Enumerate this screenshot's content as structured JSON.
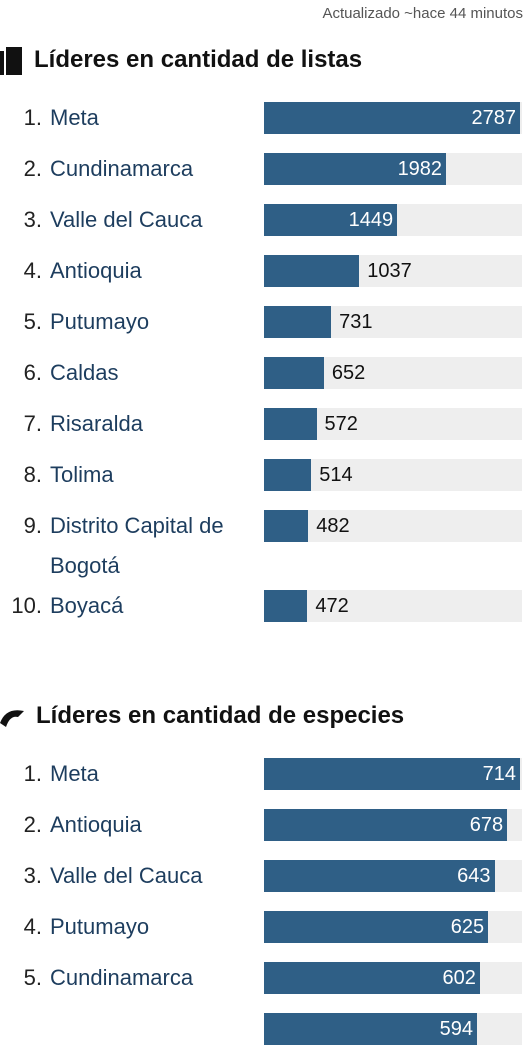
{
  "header": {
    "updated": "Actualizado ~hace 44 minutos"
  },
  "chart_data": [
    {
      "type": "bar",
      "orientation": "horizontal",
      "title": "Líderes en cantidad de listas",
      "ranks": [
        "1.",
        "2.",
        "3.",
        "4.",
        "5.",
        "6.",
        "7.",
        "8.",
        "9.",
        "10."
      ],
      "categories": [
        "Meta",
        "Cundinamarca",
        "Valle del Cauca",
        "Antioquia",
        "Putumayo",
        "Caldas",
        "Risaralda",
        "Tolima",
        "Distrito Capital de Bogotá",
        "Boyacá"
      ],
      "values": [
        2787,
        1982,
        1449,
        1037,
        731,
        652,
        572,
        514,
        482,
        472
      ],
      "color": "#2f5f86"
    },
    {
      "type": "bar",
      "orientation": "horizontal",
      "title": "Líderes en cantidad de especies",
      "ranks": [
        "1.",
        "2.",
        "3.",
        "4.",
        "5.",
        null
      ],
      "categories": [
        "Meta",
        "Antioquia",
        "Valle del Cauca",
        "Putumayo",
        "Cundinamarca",
        null
      ],
      "values": [
        714,
        678,
        643,
        625,
        602,
        594
      ],
      "color": "#2f5f86"
    }
  ]
}
